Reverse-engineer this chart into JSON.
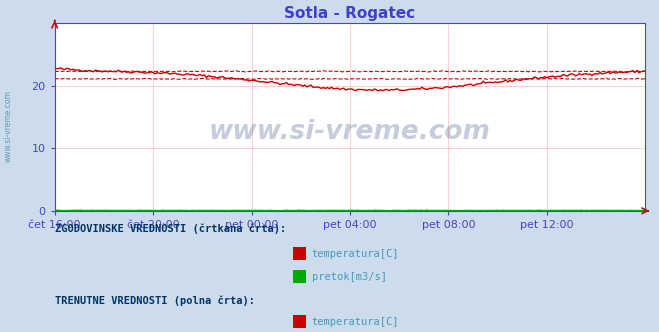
{
  "title": "Sotla - Rogatec",
  "title_color": "#4040cc",
  "bg_color": "#ccdcec",
  "plot_bg_color": "#ffffff",
  "grid_color": "#ffaaaa",
  "axis_color": "#4444cc",
  "tick_color": "#4444cc",
  "xlim": [
    0,
    288
  ],
  "ylim": [
    0,
    30
  ],
  "yticks": [
    0,
    10,
    20
  ],
  "xtick_labels": [
    "čet 16:00",
    "čet 20:00",
    "pet 00:00",
    "pet 04:00",
    "pet 08:00",
    "pet 12:00"
  ],
  "xtick_positions": [
    0,
    48,
    96,
    144,
    192,
    240
  ],
  "temp_solid_color": "#cc0000",
  "temp_dashed_color": "#cc0000",
  "flow_solid_color": "#00aa00",
  "flow_dashed_color": "#cc0000",
  "watermark_text": "www.si-vreme.com",
  "watermark_color": "#1a3a7a",
  "watermark_alpha": 0.25,
  "legend_text1": "ZGODOVINSKE VREDNOSTI (črtkana črta):",
  "legend_text2": "TRENUTNE VREDNOSTI (polna črta):",
  "legend_items": [
    "temperatura[C]",
    "pretok[m3/s]"
  ],
  "legend_font_color": "#4499bb",
  "legend_label_color": "#003366",
  "sidebar_text": "www.si-vreme.com",
  "sidebar_color": "#4488aa",
  "arrow_color": "#cc0000"
}
